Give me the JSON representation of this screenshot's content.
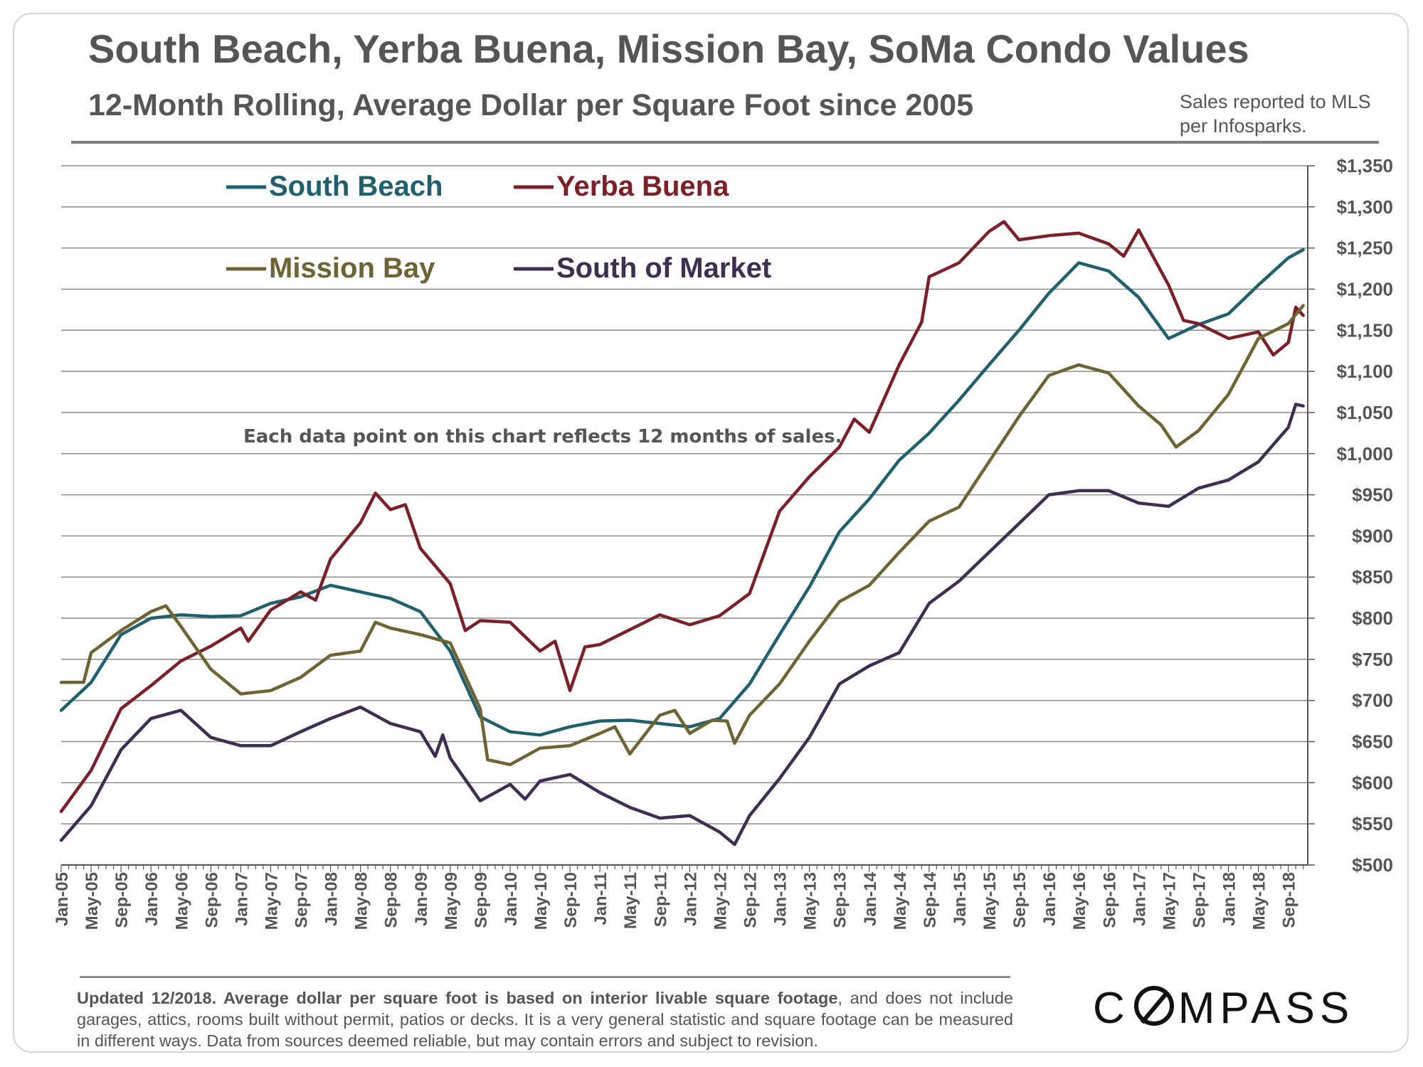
{
  "title": "South Beach, Yerba Buena, Mission Bay, SoMa Condo Values",
  "subtitle": "12-Month Rolling, Average Dollar per Square Foot since 2005",
  "source_note": "Sales reported to MLS per Infosparks.",
  "annotation": "Each data point on this chart reflects 12 months of sales.",
  "footnote": {
    "bold": "Updated 12/2018. Average dollar per square foot is based on interior livable square footage",
    "rest": ", and does not include garages, attics, rooms built without permit, patios or decks. It is a very general statistic and square footage can be measured in different ways. Data from sources deemed reliable, but may contain errors and subject to revision."
  },
  "logo": {
    "text_before": "C",
    "text_after": "MPASS",
    "icon": "compass-o-icon"
  },
  "chart_data": {
    "type": "line",
    "x_start": "Jan-05",
    "x_end": "Nov-18",
    "x_ticks": [
      "Jan-05",
      "May-05",
      "Sep-05",
      "Jan-06",
      "May-06",
      "Sep-06",
      "Jan-07",
      "May-07",
      "Sep-07",
      "Jan-08",
      "May-08",
      "Sep-08",
      "Jan-09",
      "May-09",
      "Sep-09",
      "Jan-10",
      "May-10",
      "Sep-10",
      "Jan-11",
      "May-11",
      "Sep-11",
      "Jan-12",
      "May-12",
      "Sep-12",
      "Jan-13",
      "May-13",
      "Sep-13",
      "Jan-14",
      "May-14",
      "Sep-14",
      "Jan-15",
      "May-15",
      "Sep-15",
      "Jan-16",
      "May-16",
      "Sep-16",
      "Jan-17",
      "May-17",
      "Sep-17",
      "Jan-18",
      "May-18",
      "Sep-18"
    ],
    "y_ticks": [
      "$500",
      "$550",
      "$600",
      "$650",
      "$700",
      "$750",
      "$800",
      "$850",
      "$900",
      "$950",
      "$1,000",
      "$1,050",
      "$1,100",
      "$1,150",
      "$1,200",
      "$1,250",
      "$1,300",
      "$1,350"
    ],
    "ylim": [
      500,
      1350
    ],
    "y_axis_position": "right",
    "grid": true,
    "legend_placement": "top-left",
    "series": [
      {
        "name": "South Beach",
        "color": "#1f5f6e",
        "points": [
          [
            "Jan-05",
            688
          ],
          [
            "May-05",
            722
          ],
          [
            "Sep-05",
            780
          ],
          [
            "Jan-06",
            800
          ],
          [
            "May-06",
            804
          ],
          [
            "Sep-06",
            802
          ],
          [
            "Jan-07",
            803
          ],
          [
            "May-07",
            818
          ],
          [
            "Sep-07",
            826
          ],
          [
            "Jan-08",
            840
          ],
          [
            "May-08",
            832
          ],
          [
            "Sep-08",
            824
          ],
          [
            "Jan-09",
            808
          ],
          [
            "May-09",
            760
          ],
          [
            "Sep-09",
            680
          ],
          [
            "Jan-10",
            662
          ],
          [
            "May-10",
            658
          ],
          [
            "Sep-10",
            668
          ],
          [
            "Jan-11",
            675
          ],
          [
            "May-11",
            676
          ],
          [
            "Sep-11",
            672
          ],
          [
            "Jan-12",
            668
          ],
          [
            "May-12",
            678
          ],
          [
            "Sep-12",
            720
          ],
          [
            "Jan-13",
            780
          ],
          [
            "May-13",
            838
          ],
          [
            "Sep-13",
            905
          ],
          [
            "Jan-14",
            945
          ],
          [
            "May-14",
            992
          ],
          [
            "Sep-14",
            1025
          ],
          [
            "Jan-15",
            1065
          ],
          [
            "May-15",
            1108
          ],
          [
            "Sep-15",
            1150
          ],
          [
            "Jan-16",
            1195
          ],
          [
            "May-16",
            1232
          ],
          [
            "Sep-16",
            1222
          ],
          [
            "Jan-17",
            1190
          ],
          [
            "May-17",
            1140
          ],
          [
            "Sep-17",
            1157
          ],
          [
            "Jan-18",
            1170
          ],
          [
            "May-18",
            1205
          ],
          [
            "Sep-18",
            1238
          ],
          [
            "Nov-18",
            1248
          ]
        ]
      },
      {
        "name": "Yerba Buena",
        "color": "#7b2027",
        "points": [
          [
            "Jan-05",
            565
          ],
          [
            "May-05",
            615
          ],
          [
            "Sep-05",
            690
          ],
          [
            "Jan-06",
            718
          ],
          [
            "May-06",
            748
          ],
          [
            "Sep-06",
            766
          ],
          [
            "Jan-07",
            788
          ],
          [
            "Feb-07",
            772
          ],
          [
            "May-07",
            810
          ],
          [
            "Sep-07",
            832
          ],
          [
            "Nov-07",
            822
          ],
          [
            "Jan-08",
            872
          ],
          [
            "May-08",
            916
          ],
          [
            "Jul-08",
            952
          ],
          [
            "Sep-08",
            932
          ],
          [
            "Nov-08",
            938
          ],
          [
            "Jan-09",
            885
          ],
          [
            "May-09",
            842
          ],
          [
            "Jul-09",
            785
          ],
          [
            "Sep-09",
            797
          ],
          [
            "Jan-10",
            795
          ],
          [
            "May-10",
            760
          ],
          [
            "Jul-10",
            772
          ],
          [
            "Sep-10",
            712
          ],
          [
            "Nov-10",
            765
          ],
          [
            "Jan-11",
            768
          ],
          [
            "May-11",
            786
          ],
          [
            "Sep-11",
            804
          ],
          [
            "Jan-12",
            792
          ],
          [
            "May-12",
            803
          ],
          [
            "Sep-12",
            830
          ],
          [
            "Jan-13",
            930
          ],
          [
            "May-13",
            972
          ],
          [
            "Sep-13",
            1008
          ],
          [
            "Nov-13",
            1042
          ],
          [
            "Jan-14",
            1026
          ],
          [
            "May-14",
            1108
          ],
          [
            "Aug-14",
            1160
          ],
          [
            "Sep-14",
            1215
          ],
          [
            "Jan-15",
            1232
          ],
          [
            "May-15",
            1270
          ],
          [
            "Jul-15",
            1282
          ],
          [
            "Sep-15",
            1260
          ],
          [
            "Jan-16",
            1265
          ],
          [
            "May-16",
            1268
          ],
          [
            "Sep-16",
            1255
          ],
          [
            "Nov-16",
            1240
          ],
          [
            "Jan-17",
            1272
          ],
          [
            "May-17",
            1205
          ],
          [
            "Jul-17",
            1162
          ],
          [
            "Sep-17",
            1158
          ],
          [
            "Jan-18",
            1140
          ],
          [
            "May-18",
            1148
          ],
          [
            "Jul-18",
            1120
          ],
          [
            "Sep-18",
            1135
          ],
          [
            "Oct-18",
            1178
          ],
          [
            "Nov-18",
            1168
          ]
        ]
      },
      {
        "name": "Mission Bay",
        "color": "#6e6333",
        "points": [
          [
            "Jan-05",
            722
          ],
          [
            "Apr-05",
            722
          ],
          [
            "May-05",
            758
          ],
          [
            "Sep-05",
            785
          ],
          [
            "Jan-06",
            808
          ],
          [
            "Mar-06",
            815
          ],
          [
            "May-06",
            790
          ],
          [
            "Sep-06",
            738
          ],
          [
            "Jan-07",
            708
          ],
          [
            "May-07",
            712
          ],
          [
            "Sep-07",
            728
          ],
          [
            "Jan-08",
            755
          ],
          [
            "May-08",
            760
          ],
          [
            "Jul-08",
            795
          ],
          [
            "Sep-08",
            788
          ],
          [
            "Jan-09",
            780
          ],
          [
            "May-09",
            770
          ],
          [
            "Sep-09",
            690
          ],
          [
            "Oct-09",
            628
          ],
          [
            "Jan-10",
            622
          ],
          [
            "May-10",
            642
          ],
          [
            "Sep-10",
            645
          ],
          [
            "Jan-11",
            660
          ],
          [
            "Mar-11",
            668
          ],
          [
            "May-11",
            635
          ],
          [
            "Sep-11",
            682
          ],
          [
            "Nov-11",
            688
          ],
          [
            "Jan-12",
            660
          ],
          [
            "Apr-12",
            676
          ],
          [
            "Jun-12",
            675
          ],
          [
            "Jul-12",
            648
          ],
          [
            "Sep-12",
            682
          ],
          [
            "Jan-13",
            720
          ],
          [
            "May-13",
            772
          ],
          [
            "Sep-13",
            820
          ],
          [
            "Jan-14",
            840
          ],
          [
            "May-14",
            880
          ],
          [
            "Sep-14",
            918
          ],
          [
            "Jan-15",
            935
          ],
          [
            "May-15",
            990
          ],
          [
            "Sep-15",
            1045
          ],
          [
            "Jan-16",
            1095
          ],
          [
            "May-16",
            1108
          ],
          [
            "Sep-16",
            1098
          ],
          [
            "Jan-17",
            1058
          ],
          [
            "Apr-17",
            1035
          ],
          [
            "Jun-17",
            1008
          ],
          [
            "Sep-17",
            1028
          ],
          [
            "Jan-18",
            1072
          ],
          [
            "May-18",
            1140
          ],
          [
            "Sep-18",
            1158
          ],
          [
            "Nov-18",
            1180
          ]
        ]
      },
      {
        "name": "South of Market",
        "color": "#3e2f52",
        "points": [
          [
            "Jan-05",
            530
          ],
          [
            "May-05",
            572
          ],
          [
            "Sep-05",
            640
          ],
          [
            "Jan-06",
            678
          ],
          [
            "May-06",
            688
          ],
          [
            "Sep-06",
            655
          ],
          [
            "Jan-07",
            645
          ],
          [
            "May-07",
            645
          ],
          [
            "Sep-07",
            662
          ],
          [
            "Jan-08",
            678
          ],
          [
            "May-08",
            692
          ],
          [
            "Sep-08",
            672
          ],
          [
            "Jan-09",
            662
          ],
          [
            "Mar-09",
            632
          ],
          [
            "Apr-09",
            658
          ],
          [
            "May-09",
            630
          ],
          [
            "Sep-09",
            578
          ],
          [
            "Jan-10",
            598
          ],
          [
            "Mar-10",
            580
          ],
          [
            "May-10",
            602
          ],
          [
            "Sep-10",
            610
          ],
          [
            "Jan-11",
            588
          ],
          [
            "May-11",
            570
          ],
          [
            "Sep-11",
            557
          ],
          [
            "Jan-12",
            560
          ],
          [
            "May-12",
            540
          ],
          [
            "Jul-12",
            525
          ],
          [
            "Sep-12",
            560
          ],
          [
            "Jan-13",
            605
          ],
          [
            "May-13",
            655
          ],
          [
            "Sep-13",
            720
          ],
          [
            "Jan-14",
            742
          ],
          [
            "May-14",
            758
          ],
          [
            "Sep-14",
            818
          ],
          [
            "Jan-15",
            845
          ],
          [
            "May-15",
            880
          ],
          [
            "Sep-15",
            915
          ],
          [
            "Jan-16",
            950
          ],
          [
            "May-16",
            955
          ],
          [
            "Sep-16",
            955
          ],
          [
            "Jan-17",
            940
          ],
          [
            "May-17",
            936
          ],
          [
            "Sep-17",
            958
          ],
          [
            "Jan-18",
            968
          ],
          [
            "May-18",
            990
          ],
          [
            "Sep-18",
            1032
          ],
          [
            "Oct-18",
            1060
          ],
          [
            "Nov-18",
            1058
          ]
        ]
      }
    ]
  }
}
